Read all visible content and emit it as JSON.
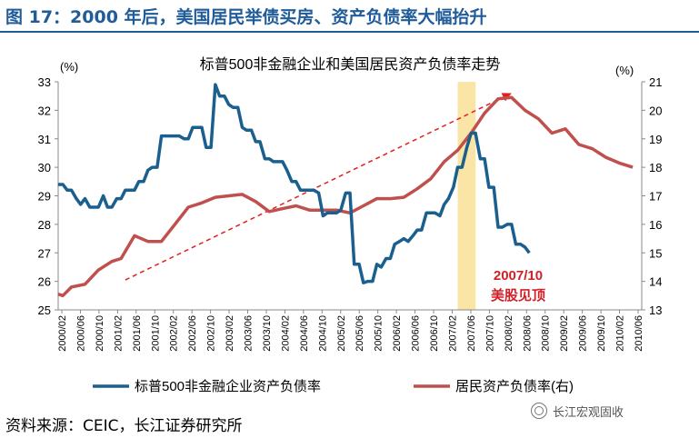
{
  "figure": {
    "title": "图 17：2000 年后，美国居民举债买房、资产负债率大幅抬升",
    "source": "资料来源：CEIC，长江证券研究所",
    "watermark": "长江宏观固收"
  },
  "colors": {
    "blue": "#1a5f8e",
    "red": "#c0504d",
    "title": "#1f5c99",
    "highlight": "#fbe5a6",
    "annotation": "#d21f26"
  },
  "chart_data": {
    "type": "line",
    "title": "标普500非金融企业和美国居民资产负债率走势",
    "left_unit": "(%)",
    "right_unit": "(%)",
    "y_left_lim": [
      25,
      33
    ],
    "y_right_lim": [
      13,
      21
    ],
    "y_left_ticks": [
      25,
      26,
      27,
      28,
      29,
      30,
      31,
      32,
      33
    ],
    "y_right_ticks": [
      13,
      14,
      15,
      16,
      17,
      18,
      19,
      20,
      21
    ],
    "x_ticks": [
      "2000/02",
      "2000/06",
      "2000/10",
      "2001/02",
      "2001/06",
      "2001/10",
      "2002/02",
      "2002/06",
      "2002/10",
      "2003/02",
      "2003/06",
      "2003/10",
      "2004/02",
      "2004/06",
      "2004/10",
      "2005/02",
      "2005/06",
      "2005/10",
      "2006/02",
      "2006/06",
      "2006/10",
      "2007/02",
      "2007/06",
      "2007/10",
      "2008/02",
      "2008/06",
      "2008/10",
      "2009/02",
      "2009/06",
      "2009/10",
      "2010/02",
      "2010/06"
    ],
    "x_range": [
      2000.083,
      2010.917
    ],
    "highlight": {
      "from": 2007.5,
      "to": 2007.833
    },
    "annotation": {
      "year": "2007/10",
      "text": "美股见顶"
    },
    "trend_arrow": {
      "from": {
        "x": 2001.33,
        "y_left": 26.05
      },
      "to": {
        "x": 2008.5,
        "y_left": 32.6
      }
    },
    "series": [
      {
        "name": "标普500非金融企业资产负债率",
        "axis": "left",
        "points": [
          [
            2000.08,
            29.4
          ],
          [
            2000.17,
            29.4
          ],
          [
            2000.25,
            29.2
          ],
          [
            2000.33,
            29.2
          ],
          [
            2000.42,
            28.9
          ],
          [
            2000.5,
            28.7
          ],
          [
            2000.58,
            28.9
          ],
          [
            2000.67,
            28.6
          ],
          [
            2000.75,
            28.6
          ],
          [
            2000.83,
            28.6
          ],
          [
            2000.92,
            29.0
          ],
          [
            2001.0,
            28.6
          ],
          [
            2001.08,
            28.6
          ],
          [
            2001.17,
            28.9
          ],
          [
            2001.25,
            28.9
          ],
          [
            2001.33,
            29.2
          ],
          [
            2001.42,
            29.2
          ],
          [
            2001.5,
            29.2
          ],
          [
            2001.58,
            29.5
          ],
          [
            2001.67,
            29.5
          ],
          [
            2001.75,
            29.9
          ],
          [
            2001.83,
            30.0
          ],
          [
            2001.92,
            30.0
          ],
          [
            2002.0,
            31.1
          ],
          [
            2002.08,
            31.1
          ],
          [
            2002.17,
            31.1
          ],
          [
            2002.25,
            31.1
          ],
          [
            2002.33,
            31.1
          ],
          [
            2002.42,
            31.0
          ],
          [
            2002.5,
            31.0
          ],
          [
            2002.58,
            31.4
          ],
          [
            2002.67,
            31.4
          ],
          [
            2002.75,
            31.4
          ],
          [
            2002.83,
            30.7
          ],
          [
            2002.92,
            30.7
          ],
          [
            2003.0,
            32.9
          ],
          [
            2003.08,
            32.5
          ],
          [
            2003.17,
            32.5
          ],
          [
            2003.25,
            32.2
          ],
          [
            2003.33,
            32.1
          ],
          [
            2003.42,
            32.1
          ],
          [
            2003.5,
            31.4
          ],
          [
            2003.58,
            31.3
          ],
          [
            2003.67,
            31.3
          ],
          [
            2003.75,
            30.9
          ],
          [
            2003.83,
            30.9
          ],
          [
            2003.92,
            30.3
          ],
          [
            2004.0,
            30.3
          ],
          [
            2004.08,
            30.2
          ],
          [
            2004.17,
            30.2
          ],
          [
            2004.25,
            30.2
          ],
          [
            2004.33,
            29.9
          ],
          [
            2004.42,
            29.5
          ],
          [
            2004.5,
            29.5
          ],
          [
            2004.58,
            29.2
          ],
          [
            2004.67,
            29.2
          ],
          [
            2004.75,
            29.2
          ],
          [
            2004.83,
            29.2
          ],
          [
            2004.92,
            29.1
          ],
          [
            2005.0,
            28.3
          ],
          [
            2005.08,
            28.4
          ],
          [
            2005.17,
            28.4
          ],
          [
            2005.25,
            28.4
          ],
          [
            2005.33,
            28.5
          ],
          [
            2005.42,
            29.1
          ],
          [
            2005.5,
            29.1
          ],
          [
            2005.58,
            26.6
          ],
          [
            2005.67,
            26.6
          ],
          [
            2005.75,
            25.95
          ],
          [
            2005.83,
            26.0
          ],
          [
            2005.92,
            26.0
          ],
          [
            2006.0,
            26.6
          ],
          [
            2006.08,
            26.5
          ],
          [
            2006.17,
            26.8
          ],
          [
            2006.25,
            26.8
          ],
          [
            2006.33,
            27.3
          ],
          [
            2006.42,
            27.4
          ],
          [
            2006.5,
            27.5
          ],
          [
            2006.58,
            27.4
          ],
          [
            2006.67,
            27.6
          ],
          [
            2006.75,
            27.8
          ],
          [
            2006.83,
            27.8
          ],
          [
            2006.92,
            28.4
          ],
          [
            2007.0,
            28.4
          ],
          [
            2007.08,
            28.4
          ],
          [
            2007.17,
            28.3
          ],
          [
            2007.25,
            28.7
          ],
          [
            2007.33,
            28.9
          ],
          [
            2007.42,
            29.3
          ],
          [
            2007.5,
            30.0
          ],
          [
            2007.58,
            30.0
          ],
          [
            2007.67,
            30.7
          ],
          [
            2007.75,
            31.2
          ],
          [
            2007.83,
            31.2
          ],
          [
            2007.92,
            30.3
          ],
          [
            2008.0,
            30.3
          ],
          [
            2008.08,
            29.3
          ],
          [
            2008.17,
            29.3
          ],
          [
            2008.25,
            27.9
          ],
          [
            2008.33,
            27.9
          ],
          [
            2008.42,
            28.0
          ],
          [
            2008.5,
            28.0
          ],
          [
            2008.58,
            27.3
          ],
          [
            2008.67,
            27.3
          ],
          [
            2008.75,
            27.2
          ],
          [
            2008.83,
            27.0
          ]
        ]
      },
      {
        "name": "居民资产负债率(右)",
        "axis": "right",
        "points": [
          [
            2000.08,
            13.55
          ],
          [
            2000.17,
            13.5
          ],
          [
            2000.33,
            13.8
          ],
          [
            2000.58,
            13.9
          ],
          [
            2000.83,
            14.4
          ],
          [
            2001.08,
            14.7
          ],
          [
            2001.25,
            14.8
          ],
          [
            2001.5,
            15.6
          ],
          [
            2001.75,
            15.4
          ],
          [
            2002.0,
            15.4
          ],
          [
            2002.25,
            16.0
          ],
          [
            2002.5,
            16.6
          ],
          [
            2002.75,
            16.75
          ],
          [
            2003.0,
            16.95
          ],
          [
            2003.25,
            17.0
          ],
          [
            2003.5,
            17.05
          ],
          [
            2003.75,
            16.8
          ],
          [
            2004.0,
            16.45
          ],
          [
            2004.25,
            16.55
          ],
          [
            2004.5,
            16.65
          ],
          [
            2004.75,
            16.5
          ],
          [
            2005.0,
            16.5
          ],
          [
            2005.25,
            16.5
          ],
          [
            2005.5,
            16.4
          ],
          [
            2005.75,
            16.65
          ],
          [
            2006.0,
            16.9
          ],
          [
            2006.25,
            16.9
          ],
          [
            2006.5,
            16.95
          ],
          [
            2006.75,
            17.25
          ],
          [
            2007.0,
            17.6
          ],
          [
            2007.25,
            18.2
          ],
          [
            2007.5,
            18.6
          ],
          [
            2007.75,
            19.2
          ],
          [
            2008.0,
            19.9
          ],
          [
            2008.25,
            20.4
          ],
          [
            2008.5,
            20.45
          ],
          [
            2008.75,
            20.0
          ],
          [
            2009.0,
            19.7
          ],
          [
            2009.25,
            19.2
          ],
          [
            2009.5,
            19.35
          ],
          [
            2009.75,
            18.8
          ],
          [
            2010.0,
            18.65
          ],
          [
            2010.25,
            18.35
          ],
          [
            2010.5,
            18.15
          ],
          [
            2010.75,
            18.0
          ]
        ]
      }
    ]
  }
}
